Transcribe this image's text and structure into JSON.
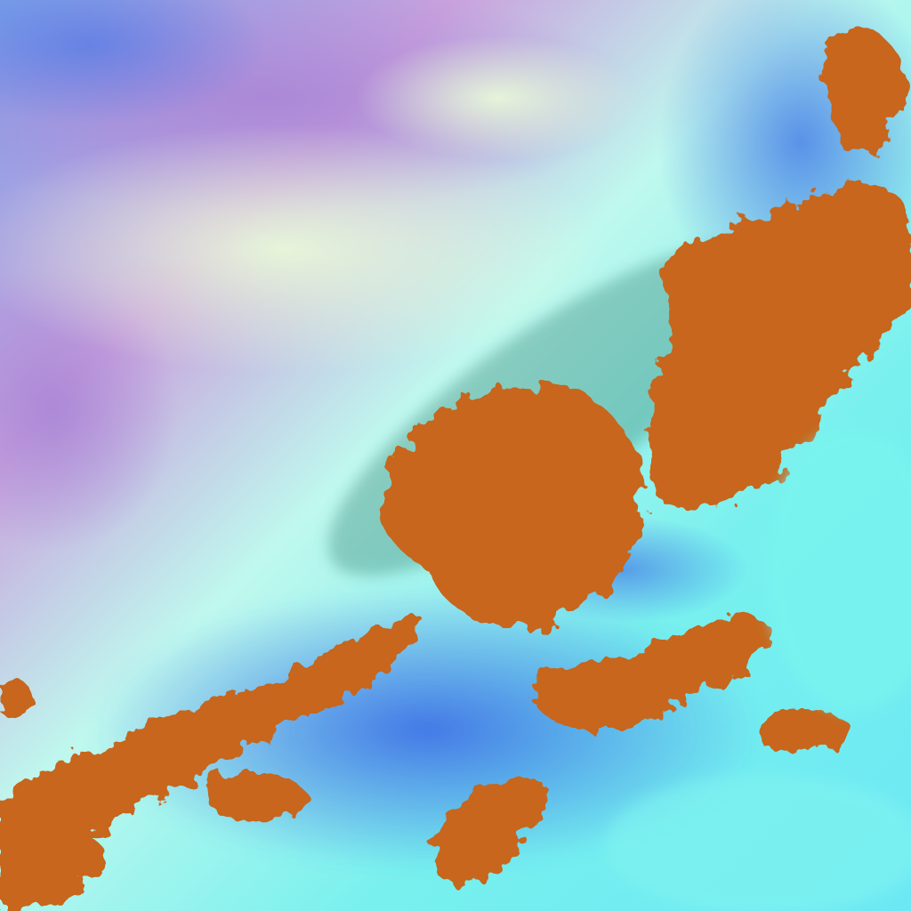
{
  "image": {
    "kind": "false-color satellite cloud imagery",
    "colors": {
      "clear_cyan": "#6ff3f0",
      "pale_cyan": "#c8fbf0",
      "haze_violet": "#b08ad8",
      "haze_blue": "#6f9ef0",
      "deep_blue": "#3d6fe8",
      "ice_cloud_orange": "#c7661e",
      "orange_light": "#d98a3c",
      "shadow_green": "#2f7a6a"
    }
  }
}
